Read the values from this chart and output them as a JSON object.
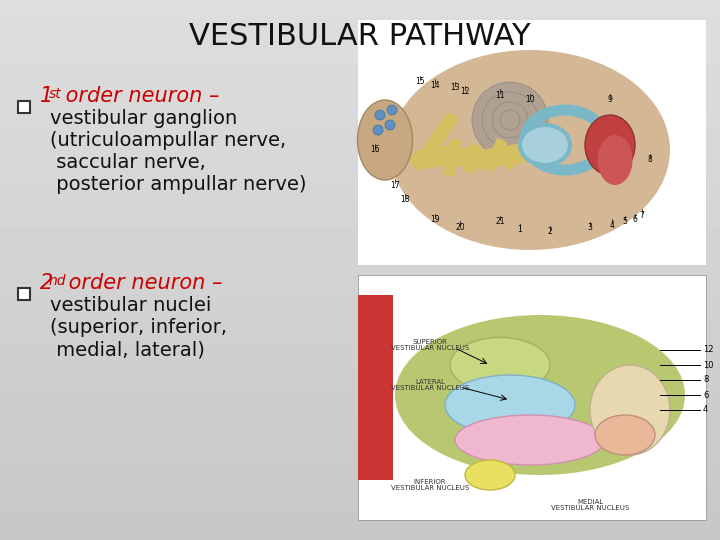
{
  "title": "VESTIBULAR PATHWAY",
  "title_fontsize": 22,
  "title_color": "#111111",
  "background_color_top": "#e8e8e8",
  "background_color_bottom": "#c8c8c8",
  "red_color": "#cc0000",
  "black_color": "#111111",
  "text_fontsize": 14,
  "body_fontsize": 14,
  "bullet1_num": "1",
  "bullet1_sup": "st",
  "bullet1_head": " order neuron –",
  "bullet1_body": [
    "vestibular ganglion",
    "(utriculoampullar nerve,",
    " saccular nerve,",
    " posterior ampullar nerve)"
  ],
  "bullet2_num": "2",
  "bullet2_sup": "nd",
  "bullet2_head": " order neuron –",
  "bullet2_body": [
    "vestibular nuclei",
    "(superior, inferior,",
    " medial, lateral)"
  ],
  "checkbox_color": "#333333",
  "img1_bg": "#e8ddd0",
  "img2_bg": "#ffffff"
}
